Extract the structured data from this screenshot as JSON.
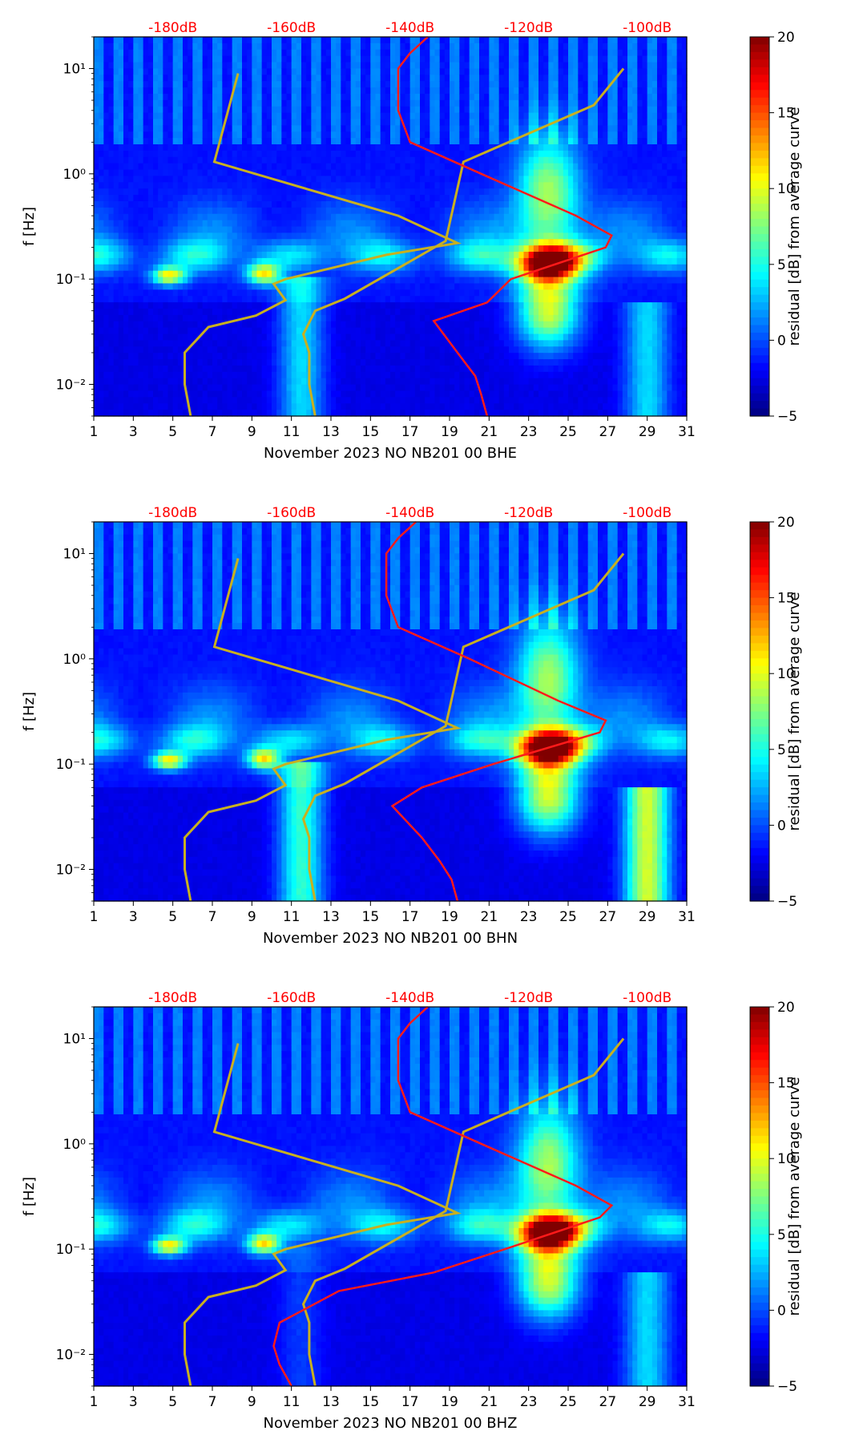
{
  "colors": {
    "psd_curve": "#ff1a1a",
    "model_curve": "#c8b020",
    "top_label": "#ff0000",
    "axis": "#000000"
  },
  "chart_data": [
    {
      "type": "heatmap",
      "component": "BHE",
      "xlabel": "November 2023 NO NB201 00 BHE",
      "ylabel": "f [Hz]",
      "colorbar_label": "residual [dB] from average curve",
      "x_ticks": [
        "1",
        "3",
        "5",
        "7",
        "9",
        "11",
        "13",
        "15",
        "17",
        "19",
        "21",
        "23",
        "25",
        "27",
        "29",
        "31"
      ],
      "x_range": [
        1,
        31
      ],
      "y_range": [
        0.005,
        20
      ],
      "y_ticks": [
        {
          "value": 0.01,
          "label": "10⁻²"
        },
        {
          "value": 0.1,
          "label": "10⁻¹"
        },
        {
          "value": 1,
          "label": "10⁰"
        },
        {
          "value": 10,
          "label": "10¹"
        }
      ],
      "db_axis_labels": [
        "-180dB",
        "-160dB",
        "-140dB",
        "-120dB",
        "-100dB"
      ],
      "colorbar_ticks": [
        "20",
        "15",
        "10",
        "5",
        "0",
        "−5"
      ],
      "colorbar_range": [
        -5,
        20
      ],
      "psd_curve": [
        [
          0.005,
          -127
        ],
        [
          0.008,
          -128
        ],
        [
          0.012,
          -129
        ],
        [
          0.02,
          -132
        ],
        [
          0.04,
          -136
        ],
        [
          0.06,
          -127
        ],
        [
          0.1,
          -123
        ],
        [
          0.2,
          -107
        ],
        [
          0.26,
          -106
        ],
        [
          0.4,
          -112
        ],
        [
          1,
          -128
        ],
        [
          2,
          -140
        ],
        [
          4,
          -142
        ],
        [
          7,
          -142
        ],
        [
          10,
          -142
        ],
        [
          14,
          -140
        ],
        [
          20,
          -137
        ]
      ],
      "model_curves": [
        [
          [
            0.005,
            -177
          ],
          [
            0.01,
            -178
          ],
          [
            0.02,
            -178
          ],
          [
            0.035,
            -174
          ],
          [
            0.045,
            -166
          ],
          [
            0.063,
            -161
          ],
          [
            0.09,
            -163
          ],
          [
            0.1,
            -161
          ],
          [
            0.17,
            -144
          ],
          [
            0.22,
            -132
          ],
          [
            0.4,
            -142
          ],
          [
            1.3,
            -173
          ],
          [
            9,
            -169
          ]
        ],
        [
          [
            0.005,
            -156
          ],
          [
            0.01,
            -157
          ],
          [
            0.02,
            -157
          ],
          [
            0.03,
            -158
          ],
          [
            0.05,
            -156
          ],
          [
            0.0651,
            -151
          ],
          [
            0.23,
            -134
          ],
          [
            1.3,
            -131
          ],
          [
            4.5,
            -109
          ],
          [
            10,
            -104
          ]
        ]
      ]
    },
    {
      "type": "heatmap",
      "component": "BHN",
      "xlabel": "November 2023 NO NB201 00 BHN",
      "ylabel": "f [Hz]",
      "colorbar_label": "residual [dB] from average curve",
      "x_ticks": [
        "1",
        "3",
        "5",
        "7",
        "9",
        "11",
        "13",
        "15",
        "17",
        "19",
        "21",
        "23",
        "25",
        "27",
        "29",
        "31"
      ],
      "x_range": [
        1,
        31
      ],
      "y_range": [
        0.005,
        20
      ],
      "y_ticks": [
        {
          "value": 0.01,
          "label": "10⁻²"
        },
        {
          "value": 0.1,
          "label": "10⁻¹"
        },
        {
          "value": 1,
          "label": "10⁰"
        },
        {
          "value": 10,
          "label": "10¹"
        }
      ],
      "db_axis_labels": [
        "-180dB",
        "-160dB",
        "-140dB",
        "-120dB",
        "-100dB"
      ],
      "colorbar_ticks": [
        "20",
        "15",
        "10",
        "5",
        "0",
        "−5"
      ],
      "colorbar_range": [
        -5,
        20
      ],
      "psd_curve": [
        [
          0.005,
          -132
        ],
        [
          0.008,
          -133
        ],
        [
          0.012,
          -135
        ],
        [
          0.02,
          -138
        ],
        [
          0.04,
          -143
        ],
        [
          0.06,
          -138
        ],
        [
          0.1,
          -126
        ],
        [
          0.2,
          -108
        ],
        [
          0.26,
          -107
        ],
        [
          0.4,
          -115
        ],
        [
          1,
          -130
        ],
        [
          2,
          -142
        ],
        [
          4,
          -144
        ],
        [
          7,
          -144
        ],
        [
          10,
          -144
        ],
        [
          14,
          -142
        ],
        [
          20,
          -139
        ]
      ],
      "model_curves": [
        [
          [
            0.005,
            -177
          ],
          [
            0.01,
            -178
          ],
          [
            0.02,
            -178
          ],
          [
            0.035,
            -174
          ],
          [
            0.045,
            -166
          ],
          [
            0.063,
            -161
          ],
          [
            0.09,
            -163
          ],
          [
            0.1,
            -161
          ],
          [
            0.17,
            -144
          ],
          [
            0.22,
            -132
          ],
          [
            0.4,
            -142
          ],
          [
            1.3,
            -173
          ],
          [
            9,
            -169
          ]
        ],
        [
          [
            0.005,
            -156
          ],
          [
            0.01,
            -157
          ],
          [
            0.02,
            -157
          ],
          [
            0.03,
            -158
          ],
          [
            0.05,
            -156
          ],
          [
            0.0651,
            -151
          ],
          [
            0.23,
            -134
          ],
          [
            1.3,
            -131
          ],
          [
            4.5,
            -109
          ],
          [
            10,
            -104
          ]
        ]
      ]
    },
    {
      "type": "heatmap",
      "component": "BHZ",
      "xlabel": "November 2023 NO NB201 00 BHZ",
      "ylabel": "f [Hz]",
      "colorbar_label": "residual [dB] from average curve",
      "x_ticks": [
        "1",
        "3",
        "5",
        "7",
        "9",
        "11",
        "13",
        "15",
        "17",
        "19",
        "21",
        "23",
        "25",
        "27",
        "29",
        "31"
      ],
      "x_range": [
        1,
        31
      ],
      "y_range": [
        0.005,
        20
      ],
      "y_ticks": [
        {
          "value": 0.01,
          "label": "10⁻²"
        },
        {
          "value": 0.1,
          "label": "10⁻¹"
        },
        {
          "value": 1,
          "label": "10⁰"
        },
        {
          "value": 10,
          "label": "10¹"
        }
      ],
      "db_axis_labels": [
        "-180dB",
        "-160dB",
        "-140dB",
        "-120dB",
        "-100dB"
      ],
      "colorbar_ticks": [
        "20",
        "15",
        "10",
        "5",
        "0",
        "−5"
      ],
      "colorbar_range": [
        -5,
        20
      ],
      "psd_curve": [
        [
          0.005,
          -160
        ],
        [
          0.008,
          -162
        ],
        [
          0.012,
          -163
        ],
        [
          0.02,
          -162
        ],
        [
          0.04,
          -152
        ],
        [
          0.06,
          -136
        ],
        [
          0.1,
          -124
        ],
        [
          0.2,
          -108
        ],
        [
          0.26,
          -106
        ],
        [
          0.4,
          -112
        ],
        [
          1,
          -128
        ],
        [
          2,
          -140
        ],
        [
          4,
          -142
        ],
        [
          7,
          -142
        ],
        [
          10,
          -142
        ],
        [
          14,
          -140
        ],
        [
          20,
          -137
        ]
      ],
      "model_curves": [
        [
          [
            0.005,
            -177
          ],
          [
            0.01,
            -178
          ],
          [
            0.02,
            -178
          ],
          [
            0.035,
            -174
          ],
          [
            0.045,
            -166
          ],
          [
            0.063,
            -161
          ],
          [
            0.09,
            -163
          ],
          [
            0.1,
            -161
          ],
          [
            0.17,
            -144
          ],
          [
            0.22,
            -132
          ],
          [
            0.4,
            -142
          ],
          [
            1.3,
            -173
          ],
          [
            9,
            -169
          ]
        ],
        [
          [
            0.005,
            -156
          ],
          [
            0.01,
            -157
          ],
          [
            0.02,
            -157
          ],
          [
            0.03,
            -158
          ],
          [
            0.05,
            -156
          ],
          [
            0.0651,
            -151
          ],
          [
            0.23,
            -134
          ],
          [
            1.3,
            -131
          ],
          [
            4.5,
            -109
          ],
          [
            10,
            -104
          ]
        ]
      ]
    }
  ]
}
